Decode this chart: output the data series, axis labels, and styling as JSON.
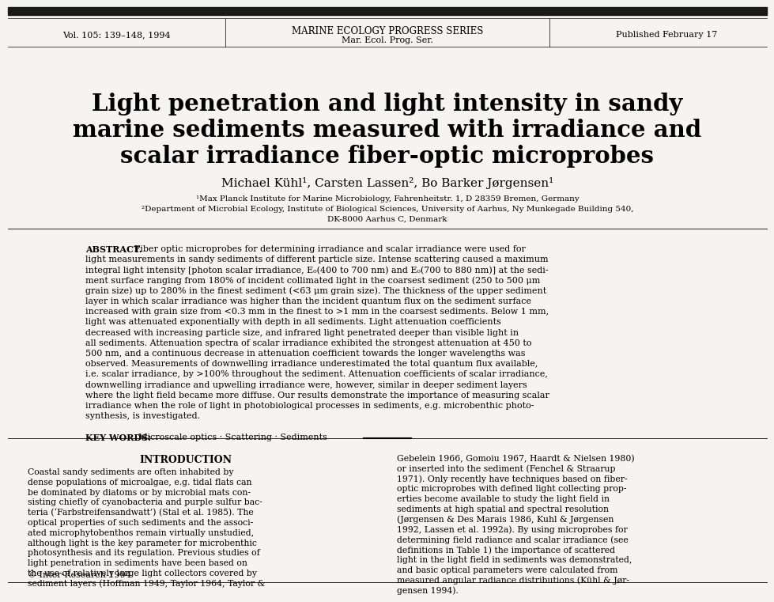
{
  "bg_color": "#f5f4f0",
  "header_bar_color": "#1a1a1a",
  "vol_text": "Vol. 105: 139–148, 1994",
  "journal_title": "MARINE ECOLOGY PROGRESS SERIES",
  "journal_subtitle": "Mar. Ecol. Prog. Ser.",
  "published_text": "Published February 17",
  "paper_title_line1": "Light penetration and light intensity in sandy",
  "paper_title_line2": "marine sediments measured with irradiance and",
  "paper_title_line3": "scalar irradiance fiber-optic microprobes",
  "authors": "Michael Kühl¹, Carsten Lassen², Bo Barker Jørgensen¹",
  "affil1": "¹Max Planck Institute for Marine Microbiology, Fahrenheitstr. 1, D 28359 Bremen, Germany",
  "affil2": "²Department of Microbial Ecology, Institute of Biological Sciences, University of Aarhus, Ny Munkegade Building 540,",
  "affil3": "DK-8000 Aarhus C, Denmark",
  "abstract_lines": [
    "ABSTRACT. Fiber optic microprobes for determining irradiance and scalar irradiance were used for",
    "light measurements in sandy sediments of different particle size. Intense scattering caused a maximum",
    "integral light intensity [photon scalar irradiance, E₀(400 to 700 nm) and E₀(700 to 880 nm)] at the sedi-",
    "ment surface ranging from 180% of incident collimated light in the coarsest sediment (250 to 500 μm",
    "grain size) up to 280% in the finest sediment (<63 μm grain size). The thickness of the upper sediment",
    "layer in which scalar irradiance was higher than the incident quantum flux on the sediment surface",
    "increased with grain size from <0.3 mm in the finest to >1 mm in the coarsest sediments. Below 1 mm,",
    "light was attenuated exponentially with depth in all sediments. Light attenuation coefficients",
    "decreased with increasing particle size, and infrared light penetrated deeper than visible light in",
    "all sediments. Attenuation spectra of scalar irradiance exhibited the strongest attenuation at 450 to",
    "500 nm, and a continuous decrease in attenuation coefficient towards the longer wavelengths was",
    "observed. Measurements of downwelling irradiance underestimated the total quantum flux available,",
    "i.e. scalar irradiance, by >100% throughout the sediment. Attenuation coefficients of scalar irradiance,",
    "downwelling irradiance and upwelling irradiance were, however, similar in deeper sediment layers",
    "where the light field became more diffuse. Our results demonstrate the importance of measuring scalar",
    "irradiance when the role of light in photobiological processes in sediments, e.g. microbenthic photo-",
    "synthesis, is investigated."
  ],
  "keywords_label": "KEY WORDS:",
  "keywords_text": "  Microscale optics · Scattering · Sediments",
  "intro_heading": "INTRODUCTION",
  "left_col_lines": [
    "Coastal sandy sediments are often inhabited by",
    "dense populations of microalgae, e.g. tidal flats can",
    "be dominated by diatoms or by microbial mats con-",
    "sisting chiefly of cyanobacteria and purple sulfur bac-",
    "teria (‘Farbstreifensandwatt’) (Stal et al. 1985). The",
    "optical properties of such sediments and the associ-",
    "ated microphytobenthos remain virtually unstudied,",
    "although light is the key parameter for microbenthic",
    "photosynthesis and its regulation. Previous studies of",
    "light penetration in sediments have been based on",
    "the use of relatively large light collectors covered by",
    "sediment layers (Hoffman 1949, Taylor 1964, Taylor &"
  ],
  "right_col_lines": [
    "Gebelein 1966, Gomoiu 1967, Haardt & Nielsen 1980)",
    "or inserted into the sediment (Fenchel & Straarup",
    "1971). Only recently have techniques based on fiber-",
    "optic microprobes with defined light collecting prop-",
    "erties become available to study the light field in",
    "sediments at high spatial and spectral resolution",
    "(Jørgensen & Des Marais 1986, Kuhl & Jørgensen",
    "1992, Lassen et al. 1992a). By using microprobes for",
    "determining field radiance and scalar irradiance (see",
    "definitions in Table 1) the importance of scattered",
    "light in the light field in sediments was demonstrated,",
    "and basic optical parameters were calculated from",
    "measured angular radiance distributions (Kühl & Jør-",
    "gensen 1994)."
  ],
  "copyright_text": "© Inter-Research 1994"
}
